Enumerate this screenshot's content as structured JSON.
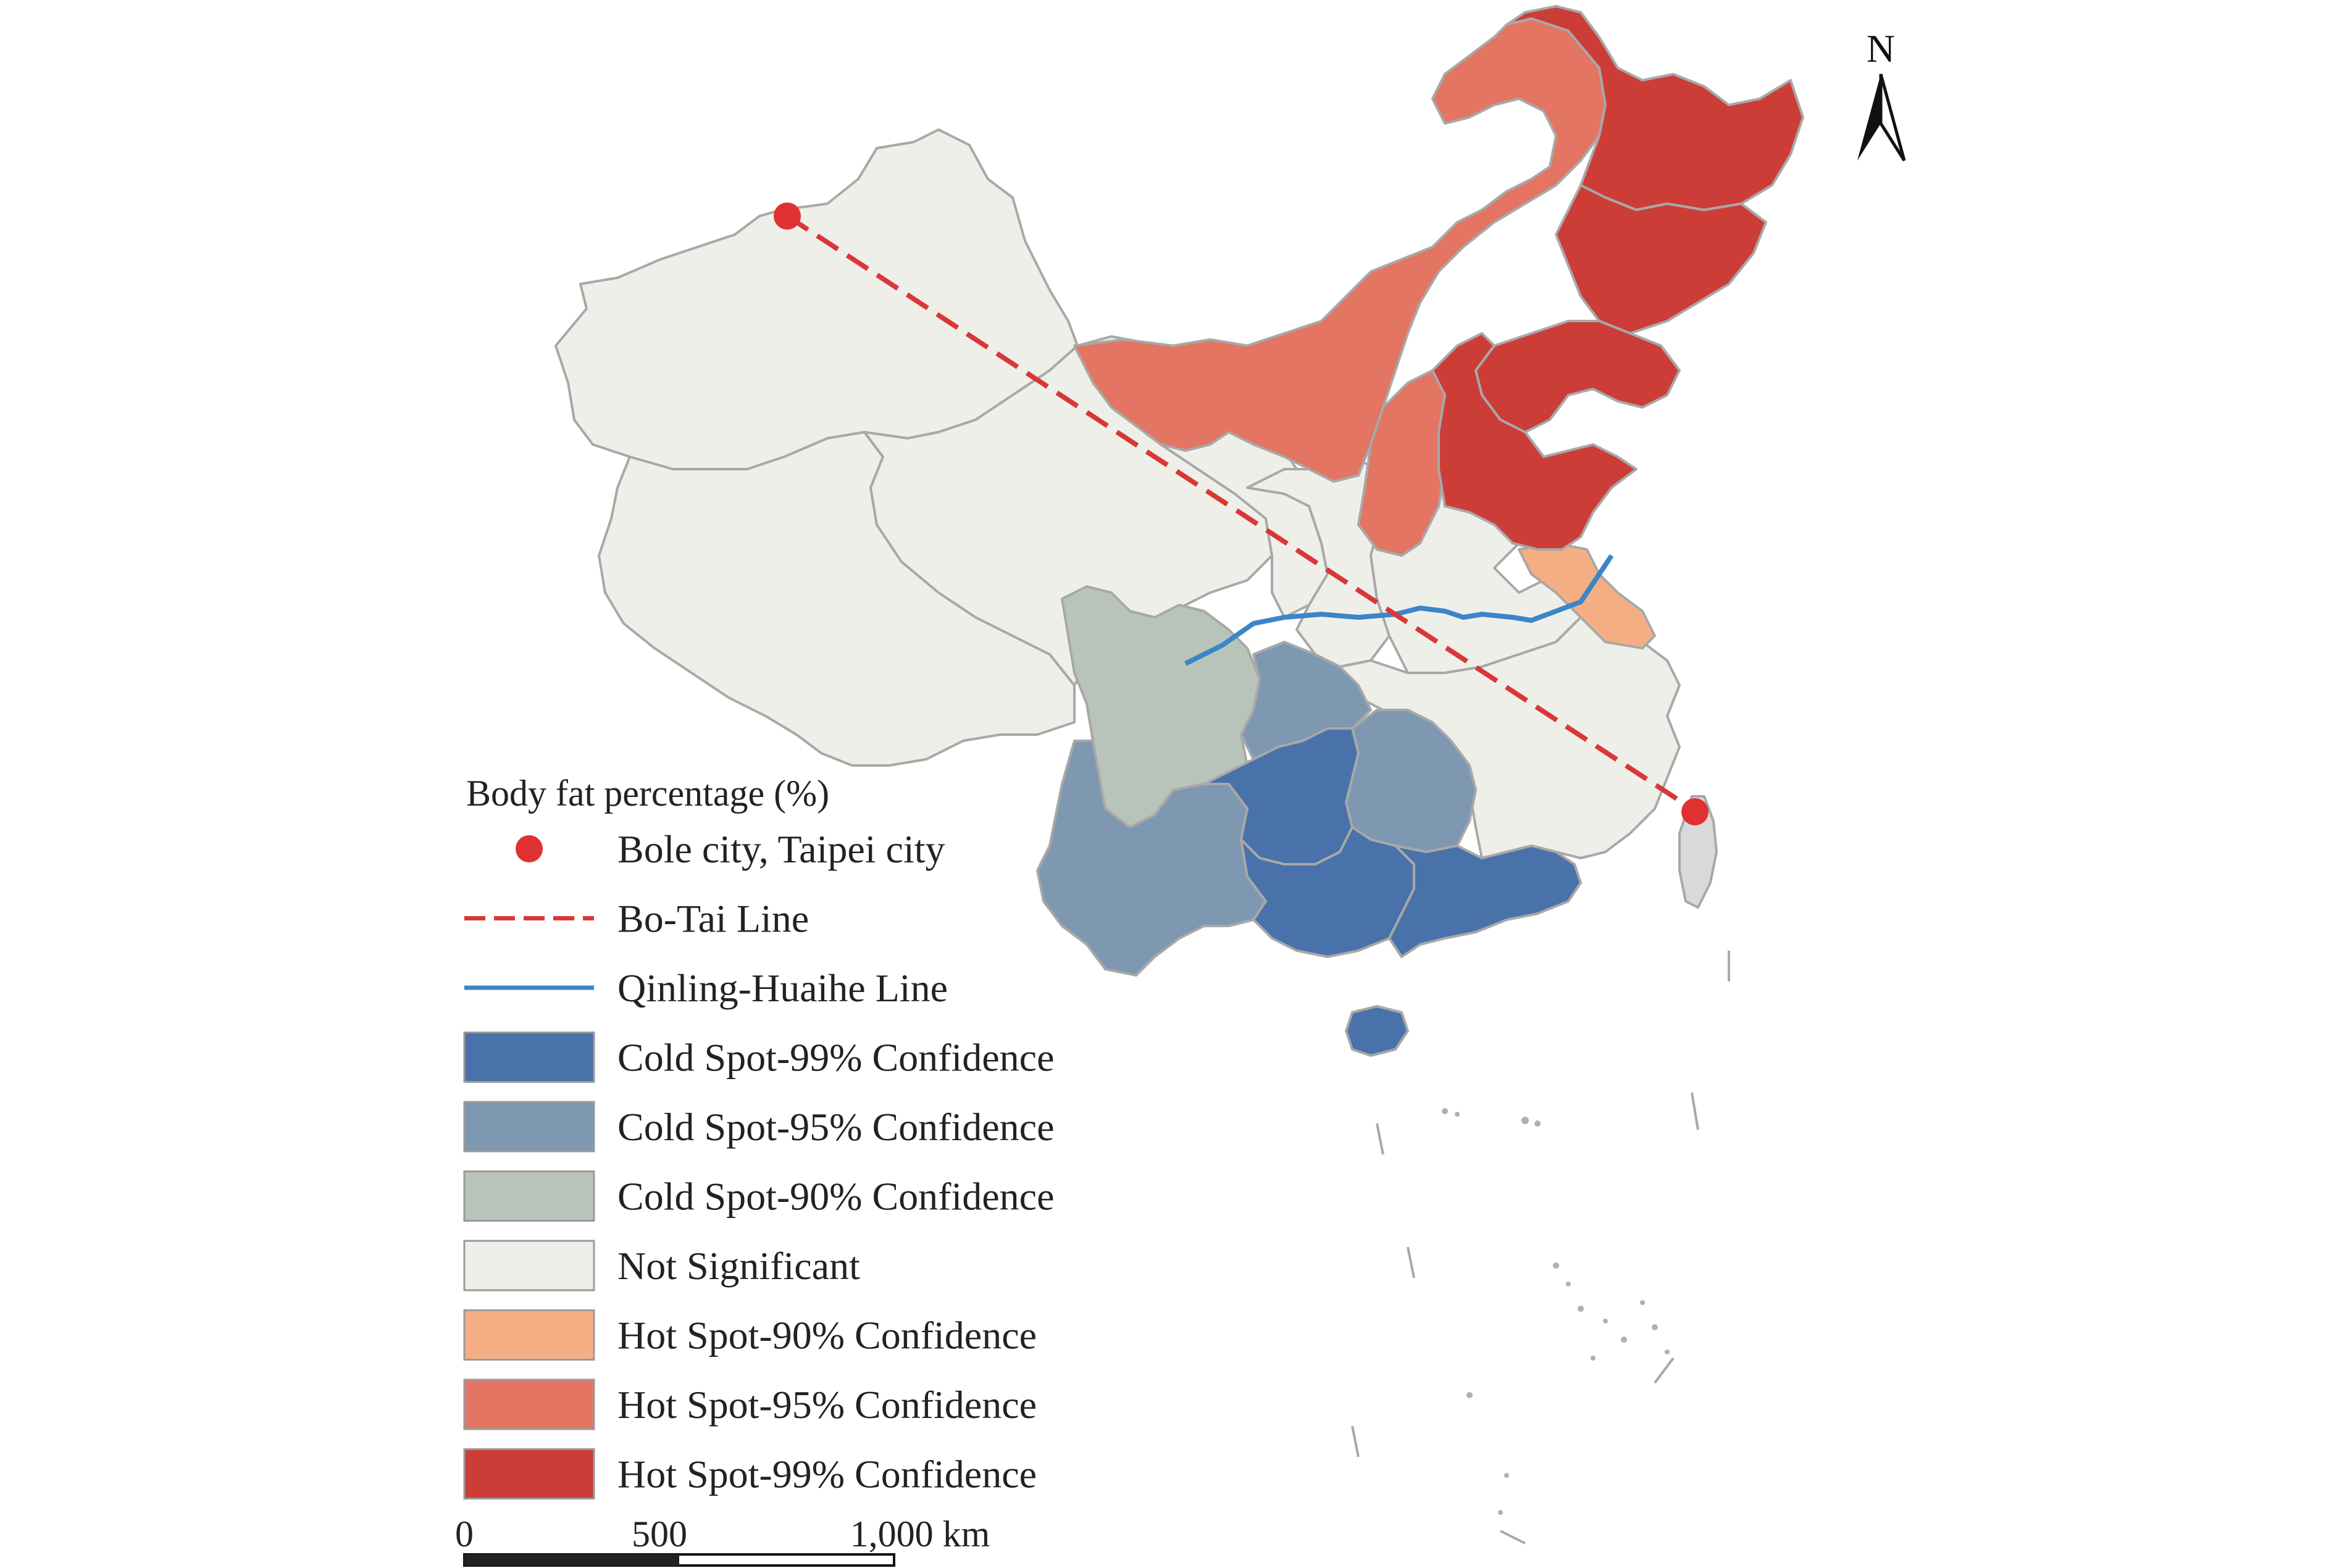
{
  "north_arrow": {
    "label": "N"
  },
  "legend": {
    "title": "Body fat percentage (%)",
    "items": [
      {
        "key": "city",
        "label": "Bole city, Taipei city",
        "symbol": "point",
        "color": "#e03132"
      },
      {
        "key": "botai",
        "label": "Bo-Tai Line",
        "symbol": "dashed-line",
        "color": "#d93737"
      },
      {
        "key": "qinling",
        "label": "Qinling-Huaihe Line",
        "symbol": "line",
        "color": "#3a86c8"
      },
      {
        "key": "cold99",
        "label": "Cold Spot-99% Confidence",
        "symbol": "patch",
        "color": "#4a72aa"
      },
      {
        "key": "cold95",
        "label": "Cold Spot-95% Confidence",
        "symbol": "patch",
        "color": "#7e98b2"
      },
      {
        "key": "cold90",
        "label": "Cold Spot-90% Confidence",
        "symbol": "patch",
        "color": "#b8c4b9"
      },
      {
        "key": "notsig",
        "label": "Not Significant",
        "symbol": "patch",
        "color": "#efefea"
      },
      {
        "key": "hot90",
        "label": "Hot Spot-90% Confidence",
        "symbol": "patch",
        "color": "#f5ae83"
      },
      {
        "key": "hot95",
        "label": "Hot Spot-95% Confidence",
        "symbol": "patch",
        "color": "#e37562"
      },
      {
        "key": "hot99",
        "label": "Hot Spot-99% Confidence",
        "symbol": "patch",
        "color": "#cd3d38"
      }
    ]
  },
  "scale_bar": {
    "labels": [
      "0",
      "500",
      "1,000 km"
    ]
  },
  "colors": {
    "taiwan": "#d9d9d9",
    "border": "#a8a8a8"
  }
}
